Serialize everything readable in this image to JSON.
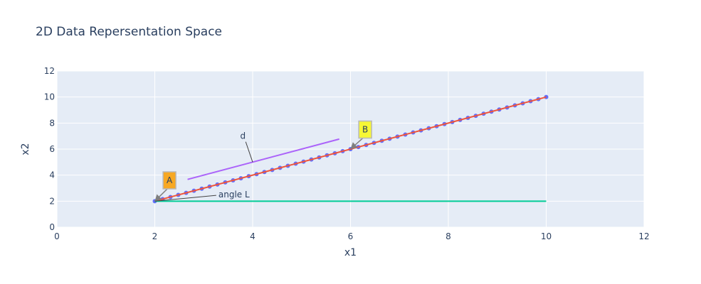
{
  "chart_data": {
    "type": "scatter",
    "title": "2D Data Repersentation Space",
    "xlabel": "x1",
    "ylabel": "x2",
    "xlim": [
      0,
      12
    ],
    "ylim": [
      0,
      12
    ],
    "xticks": [
      0,
      2,
      4,
      6,
      8,
      10,
      12
    ],
    "yticks": [
      0,
      2,
      4,
      6,
      8,
      10,
      12
    ],
    "grid": true,
    "background": "#e5ecf6",
    "series": [
      {
        "kind": "line+markers",
        "color": "#636efa",
        "line_color": "#ef553b",
        "start": [
          2,
          2
        ],
        "end": [
          10,
          10
        ],
        "count": 51
      },
      {
        "kind": "line",
        "color": "#00cc96",
        "x": [
          2,
          10
        ],
        "y": [
          2,
          2
        ]
      },
      {
        "kind": "line",
        "color": "#ab63fa",
        "x": [
          2.67,
          5.77
        ],
        "y": [
          3.67,
          6.77
        ]
      }
    ],
    "annotations": [
      {
        "text": "A",
        "x": 2,
        "y": 2,
        "bgcolor": "#f7a823",
        "border": "#b8b8b8",
        "arrow": true,
        "ax": 2.3,
        "ay": 3.6
      },
      {
        "text": "B",
        "x": 6,
        "y": 6,
        "bgcolor": "#f7f736",
        "border": "#b8b8b8",
        "arrow": true,
        "ax": 6.3,
        "ay": 7.5
      },
      {
        "text": "d",
        "x": 4,
        "y": 5,
        "arrow": true,
        "ax": 3.8,
        "ay": 7.0
      },
      {
        "text": "angle L",
        "x": 2,
        "y": 2,
        "arrow": true,
        "ax": 3.3,
        "ay": 2.5
      }
    ]
  }
}
